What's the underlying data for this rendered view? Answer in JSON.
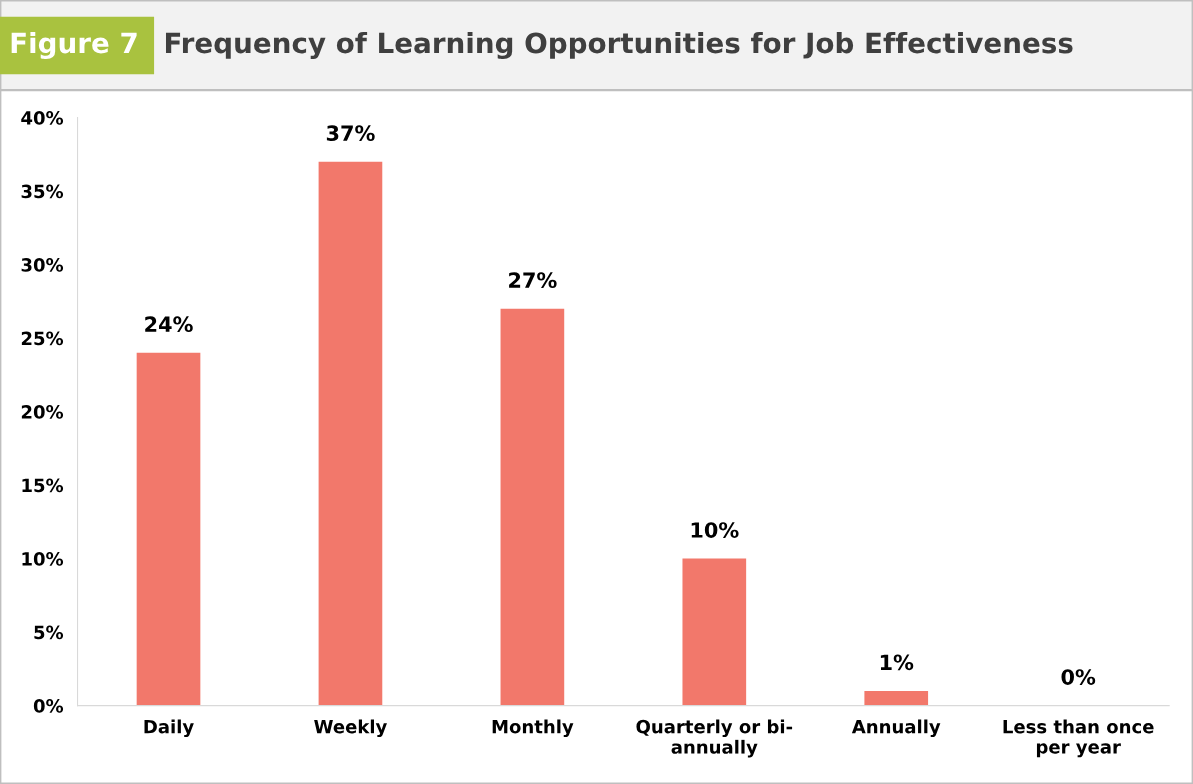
{
  "chart_data": {
    "type": "bar",
    "title": "Frequency of Learning Opportunities for Job Effectiveness",
    "annotations": [
      "Figure 7"
    ],
    "categories": [
      "Daily",
      "Weekly",
      "Monthly",
      "Quarterly or bi-\nannually",
      "Annually",
      "Less than once\nper year"
    ],
    "values": [
      24,
      37,
      27,
      10,
      1,
      0
    ],
    "value_labels": [
      "24%",
      "37%",
      "27%",
      "10%",
      "1%",
      "0%"
    ],
    "color": "#f2786b",
    "ylim": [
      0,
      40
    ],
    "yticks": [
      {
        "value": 0,
        "label": "0%"
      },
      {
        "value": 5,
        "label": "5%"
      },
      {
        "value": 10,
        "label": "10%"
      },
      {
        "value": 15,
        "label": "15%"
      },
      {
        "value": 20,
        "label": "20%"
      },
      {
        "value": 25,
        "label": "25%"
      },
      {
        "value": 30,
        "label": "30%"
      },
      {
        "value": 35,
        "label": "35%"
      },
      {
        "value": 40,
        "label": "40%"
      }
    ],
    "grid": false,
    "legend": false
  }
}
